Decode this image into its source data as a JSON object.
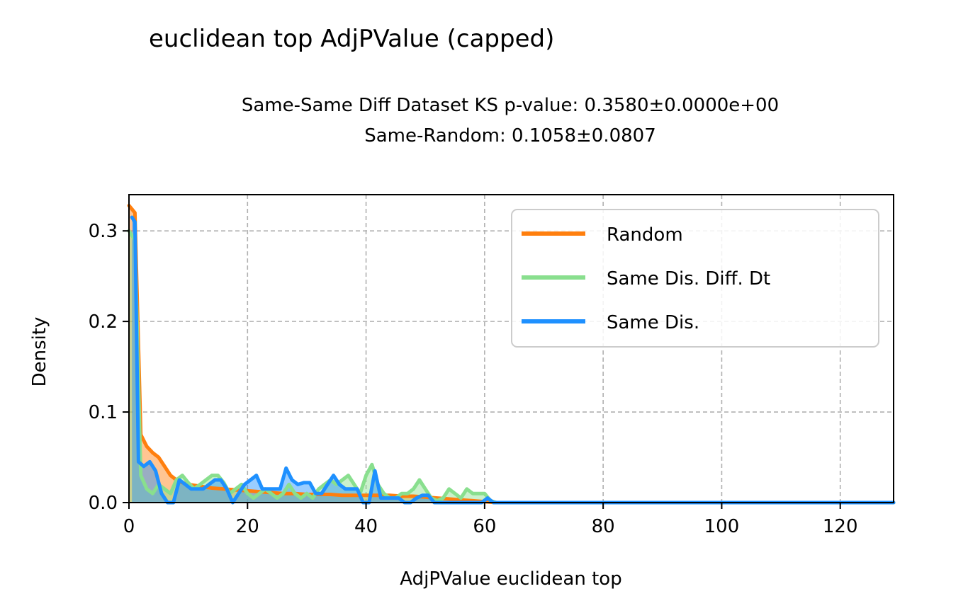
{
  "chart_data": {
    "type": "area",
    "title": "euclidean top AdjPValue (capped)",
    "subtitle_lines": [
      "Same-Same Diff Dataset  KS p-value: 0.3580±0.0000e+00",
      "Same-Random: 0.1058±0.0807"
    ],
    "xlabel": "AdjPValue euclidean top",
    "ylabel": "Density",
    "xlim": [
      0,
      129
    ],
    "ylim": [
      0,
      0.34
    ],
    "xticks": [
      0,
      20,
      40,
      60,
      80,
      100,
      120
    ],
    "yticks": [
      0.0,
      0.1,
      0.2,
      0.3
    ],
    "ytick_labels": [
      "0.0",
      "0.1",
      "0.2",
      "0.3"
    ],
    "grid": true,
    "legend_position": "top-right",
    "series": [
      {
        "name": "Random",
        "color": "#ff7f0e",
        "x": [
          0,
          1,
          2,
          3,
          4,
          5,
          6,
          7,
          8,
          9,
          10,
          12,
          14,
          16,
          18,
          20,
          22,
          24,
          26,
          28,
          30,
          32,
          34,
          36,
          38,
          40,
          42,
          44,
          46,
          48,
          50,
          52,
          54,
          56,
          58,
          60,
          61,
          62,
          129
        ],
        "y": [
          0.328,
          0.32,
          0.075,
          0.062,
          0.055,
          0.05,
          0.04,
          0.03,
          0.025,
          0.022,
          0.02,
          0.018,
          0.016,
          0.015,
          0.014,
          0.013,
          0.012,
          0.011,
          0.01,
          0.01,
          0.009,
          0.009,
          0.009,
          0.008,
          0.008,
          0.008,
          0.008,
          0.008,
          0.007,
          0.007,
          0.006,
          0.005,
          0.004,
          0.003,
          0.002,
          0.001,
          0.0005,
          0.0,
          0.0
        ]
      },
      {
        "name": "Same Dis. Diff. Dt",
        "color": "#89df8e",
        "x": [
          0,
          1,
          2,
          3,
          4,
          5,
          6,
          7,
          8,
          9,
          10,
          11,
          12,
          13,
          14,
          15,
          16,
          17,
          18,
          19,
          20,
          21,
          22,
          23,
          24,
          25,
          26,
          27,
          28,
          29,
          30,
          31,
          32,
          33,
          34,
          35,
          36,
          37,
          38,
          39,
          40,
          41,
          42,
          43,
          44,
          45,
          46,
          47,
          48,
          49,
          50,
          51,
          52,
          53,
          54,
          55,
          56,
          57,
          58,
          59,
          60,
          61,
          62,
          129
        ],
        "y": [
          0.3,
          0.29,
          0.03,
          0.015,
          0.01,
          0.02,
          0.015,
          0.01,
          0.025,
          0.03,
          0.022,
          0.015,
          0.02,
          0.025,
          0.03,
          0.03,
          0.022,
          0.01,
          0.015,
          0.02,
          0.01,
          0.005,
          0.01,
          0.015,
          0.01,
          0.005,
          0.01,
          0.02,
          0.01,
          0.005,
          0.01,
          0.005,
          0.015,
          0.02,
          0.025,
          0.02,
          0.025,
          0.03,
          0.02,
          0.01,
          0.03,
          0.042,
          0.02,
          0.01,
          0.005,
          0.005,
          0.01,
          0.01,
          0.015,
          0.025,
          0.015,
          0.005,
          0.002,
          0.005,
          0.015,
          0.01,
          0.005,
          0.015,
          0.01,
          0.01,
          0.01,
          0.002,
          0.0,
          0.0
        ]
      },
      {
        "name": "Same Dis.",
        "color": "#1e90ff",
        "x": [
          0.5,
          1,
          1.6,
          2.5,
          3.5,
          4.5,
          5.5,
          6.5,
          7.5,
          8.5,
          9.5,
          10.5,
          11.5,
          12.5,
          13.5,
          14.5,
          15.5,
          16.5,
          17.5,
          18.5,
          19.5,
          20.5,
          21.5,
          22.5,
          23.5,
          24.5,
          25.5,
          26.5,
          27.5,
          28.5,
          29.5,
          30.5,
          31.5,
          32.5,
          33.5,
          34.5,
          35.5,
          36.5,
          37.5,
          38.5,
          39.5,
          40.5,
          41.5,
          42.5,
          43.5,
          44.5,
          45.5,
          46.5,
          47.5,
          48.5,
          49.5,
          50.5,
          51.5,
          52.5,
          53.5,
          54.5,
          55.5,
          56.5,
          57.5,
          58.5,
          59.5,
          60.5,
          61.5,
          129
        ],
        "y": [
          0.315,
          0.31,
          0.045,
          0.04,
          0.045,
          0.035,
          0.01,
          0.0,
          0.0,
          0.025,
          0.02,
          0.015,
          0.015,
          0.015,
          0.02,
          0.025,
          0.025,
          0.015,
          0.0,
          0.01,
          0.02,
          0.025,
          0.03,
          0.015,
          0.015,
          0.015,
          0.015,
          0.038,
          0.025,
          0.02,
          0.022,
          0.022,
          0.01,
          0.01,
          0.02,
          0.03,
          0.02,
          0.015,
          0.015,
          0.015,
          0.0,
          0.0,
          0.035,
          0.005,
          0.005,
          0.005,
          0.005,
          0.0,
          0.0,
          0.005,
          0.008,
          0.008,
          0.0,
          0.0,
          0.0,
          0.0,
          0.0,
          0.0,
          0.0,
          0.0,
          0.0,
          0.005,
          0.0,
          0.0
        ]
      }
    ]
  }
}
